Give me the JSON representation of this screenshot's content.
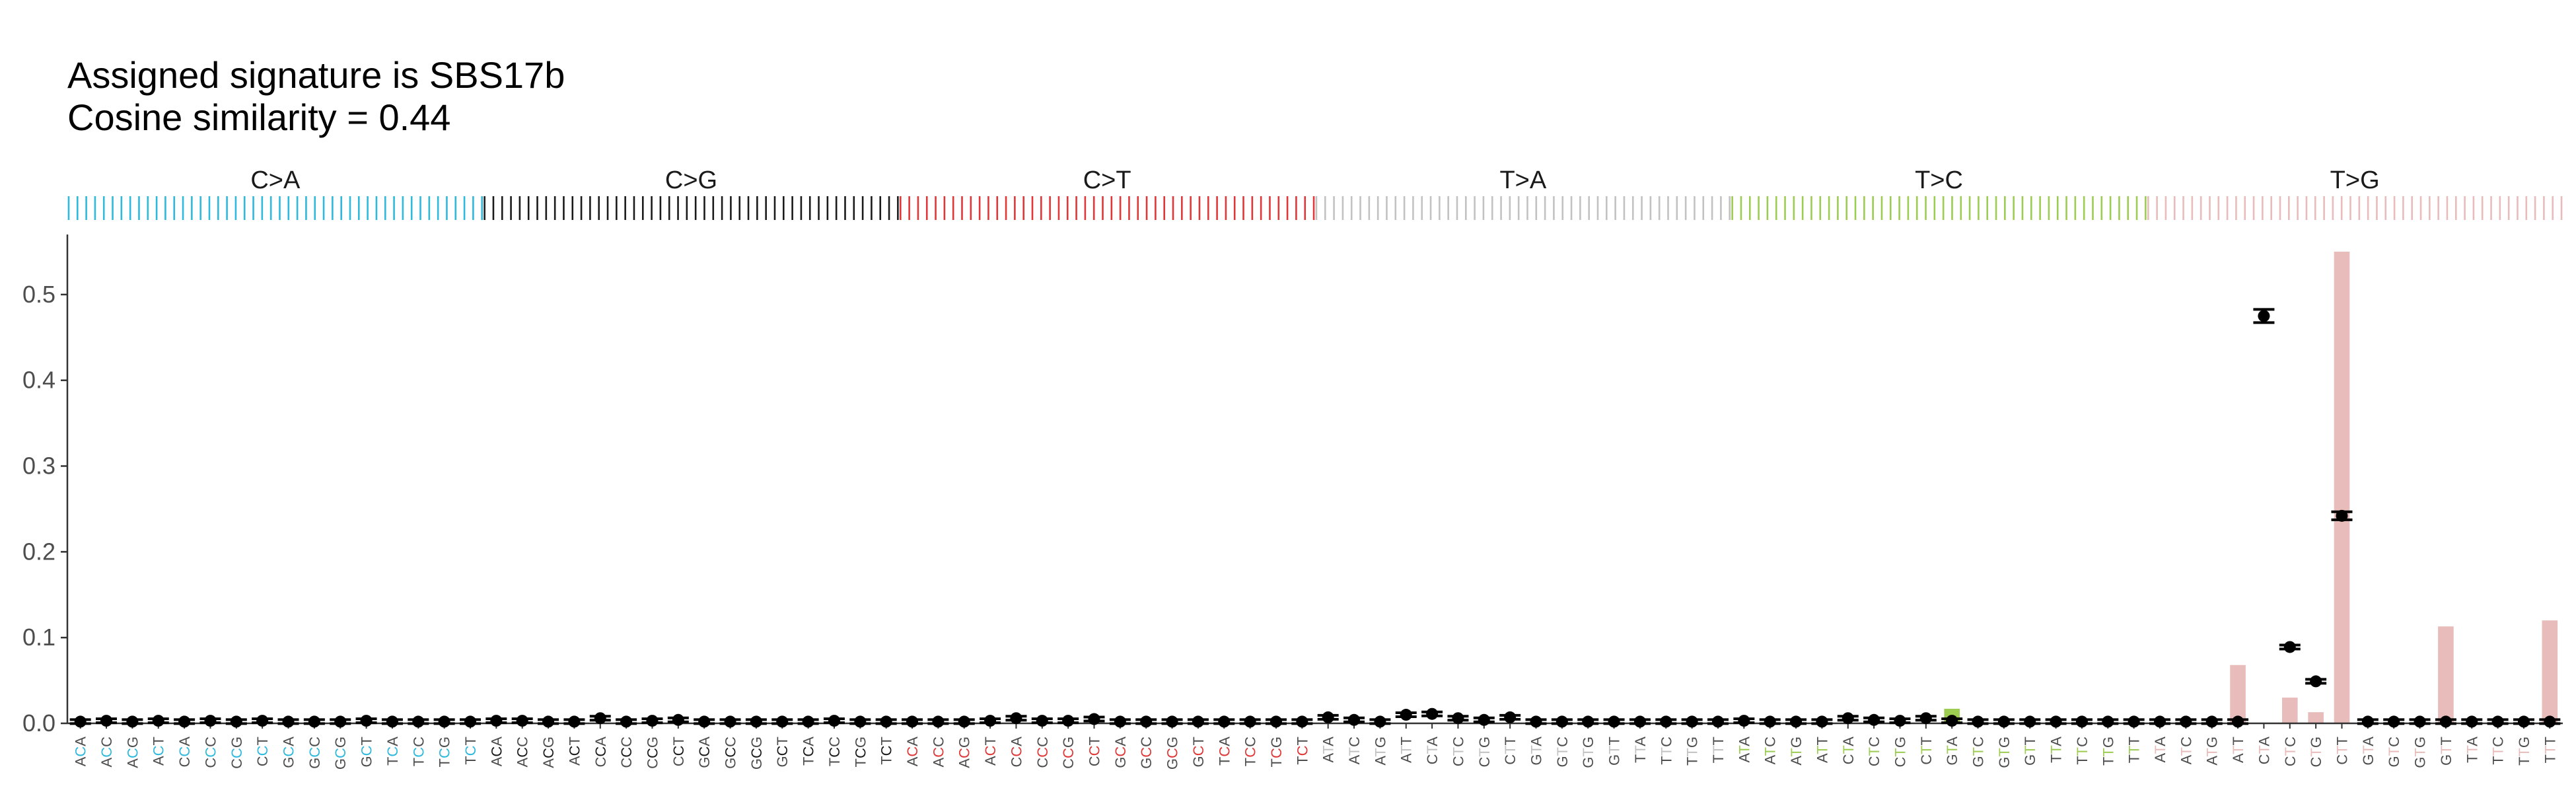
{
  "chart_data": {
    "type": "bar",
    "title": "Assigned signature is SBS17b",
    "subtitle": "Cosine similarity = 0.44",
    "xlabel": "",
    "ylabel": "",
    "ylim": [
      0,
      0.57
    ],
    "yticks": [
      "0.0",
      "0.1",
      "0.2",
      "0.3",
      "0.4",
      "0.5"
    ],
    "ytick_values": [
      0,
      0.1,
      0.2,
      0.3,
      0.4,
      0.5
    ],
    "grid": false,
    "legend": "none",
    "contexts": [
      "ACA",
      "ACC",
      "ACG",
      "ACT",
      "CCA",
      "CCC",
      "CCG",
      "CCT",
      "GCA",
      "GCC",
      "GCG",
      "GCT",
      "TCA",
      "TCC",
      "TCG",
      "TCT"
    ],
    "panels": [
      {
        "label": "C>A",
        "color": "#2eb9dd",
        "contexts": [
          "ACA",
          "ACC",
          "ACG",
          "ACT",
          "CCA",
          "CCC",
          "CCG",
          "CCT",
          "GCA",
          "GCC",
          "GCG",
          "GCT",
          "TCA",
          "TCC",
          "TCG",
          "TCT"
        ],
        "bar_values": [
          0,
          0,
          0,
          0,
          0,
          0,
          0,
          0,
          0,
          0,
          0,
          0,
          0,
          0,
          0,
          0
        ],
        "point_values": [
          0.002,
          0.003,
          0.002,
          0.003,
          0.002,
          0.003,
          0.002,
          0.003,
          0.002,
          0.002,
          0.002,
          0.003,
          0.002,
          0.002,
          0.002,
          0.002
        ]
      },
      {
        "label": "C>G",
        "color": "#1a1a1a",
        "contexts": [
          "ACA",
          "ACC",
          "ACG",
          "ACT",
          "CCA",
          "CCC",
          "CCG",
          "CCT",
          "GCA",
          "GCC",
          "GCG",
          "GCT",
          "TCA",
          "TCC",
          "TCG",
          "TCT"
        ],
        "bar_values": [
          0,
          0,
          0,
          0,
          0,
          0,
          0,
          0,
          0,
          0,
          0,
          0,
          0,
          0,
          0,
          0
        ],
        "point_values": [
          0.003,
          0.003,
          0.002,
          0.002,
          0.006,
          0.002,
          0.003,
          0.004,
          0.002,
          0.002,
          0.002,
          0.002,
          0.002,
          0.003,
          0.002,
          0.002
        ]
      },
      {
        "label": "C>T",
        "color": "#e03838",
        "contexts": [
          "ACA",
          "ACC",
          "ACG",
          "ACT",
          "CCA",
          "CCC",
          "CCG",
          "CCT",
          "GCA",
          "GCC",
          "GCG",
          "GCT",
          "TCA",
          "TCC",
          "TCG",
          "TCT"
        ],
        "bar_values": [
          0,
          0,
          0,
          0,
          0,
          0,
          0,
          0,
          0,
          0,
          0,
          0,
          0,
          0,
          0,
          0
        ],
        "point_values": [
          0.002,
          0.002,
          0.002,
          0.003,
          0.006,
          0.003,
          0.003,
          0.005,
          0.002,
          0.002,
          0.002,
          0.002,
          0.002,
          0.002,
          0.002,
          0.002
        ]
      },
      {
        "label": "T>A",
        "color": "#c2c2c2",
        "contexts": [
          "ATA",
          "ATC",
          "ATG",
          "ATT",
          "CTA",
          "CTC",
          "CTG",
          "CTT",
          "GTA",
          "GTC",
          "GTG",
          "GTT",
          "TTA",
          "TTC",
          "TTG",
          "TTT"
        ],
        "bar_values": [
          0,
          0,
          0,
          0,
          0,
          0,
          0,
          0,
          0,
          0,
          0,
          0,
          0,
          0,
          0,
          0
        ],
        "point_values": [
          0.007,
          0.004,
          0.002,
          0.01,
          0.011,
          0.006,
          0.004,
          0.007,
          0.002,
          0.002,
          0.002,
          0.002,
          0.002,
          0.002,
          0.002,
          0.002
        ]
      },
      {
        "label": "T>C",
        "color": "#9ccc52",
        "contexts": [
          "ATA",
          "ATC",
          "ATG",
          "ATT",
          "CTA",
          "CTC",
          "CTG",
          "CTT",
          "GTA",
          "GTC",
          "GTG",
          "GTT",
          "TTA",
          "TTC",
          "TTG",
          "TTT"
        ],
        "bar_values": [
          0,
          0,
          0,
          0,
          0,
          0,
          0,
          0,
          0.017,
          0,
          0,
          0,
          0,
          0,
          0,
          0
        ],
        "point_values": [
          0.003,
          0.002,
          0.002,
          0.002,
          0.006,
          0.004,
          0.003,
          0.006,
          0.003,
          0.002,
          0.002,
          0.002,
          0.002,
          0.002,
          0.002,
          0.002
        ]
      },
      {
        "label": "T>G",
        "color": "#e7bcbb",
        "contexts": [
          "ATA",
          "ATC",
          "ATG",
          "ATT",
          "CTA",
          "CTC",
          "CTG",
          "CTT",
          "GTA",
          "GTC",
          "GTG",
          "GTT",
          "TTA",
          "TTC",
          "TTG",
          "TTT"
        ],
        "bar_values": [
          0,
          0,
          0,
          0.068,
          0,
          0.03,
          0.013,
          0.55,
          0,
          0,
          0,
          0.113,
          0,
          0,
          0,
          0.12
        ],
        "point_values": [
          0.002,
          0.002,
          0.002,
          0.002,
          0.475,
          0.089,
          0.049,
          0.242,
          0.002,
          0.002,
          0.002,
          0.002,
          0.002,
          0.002,
          0.002,
          0.002
        ]
      }
    ]
  }
}
